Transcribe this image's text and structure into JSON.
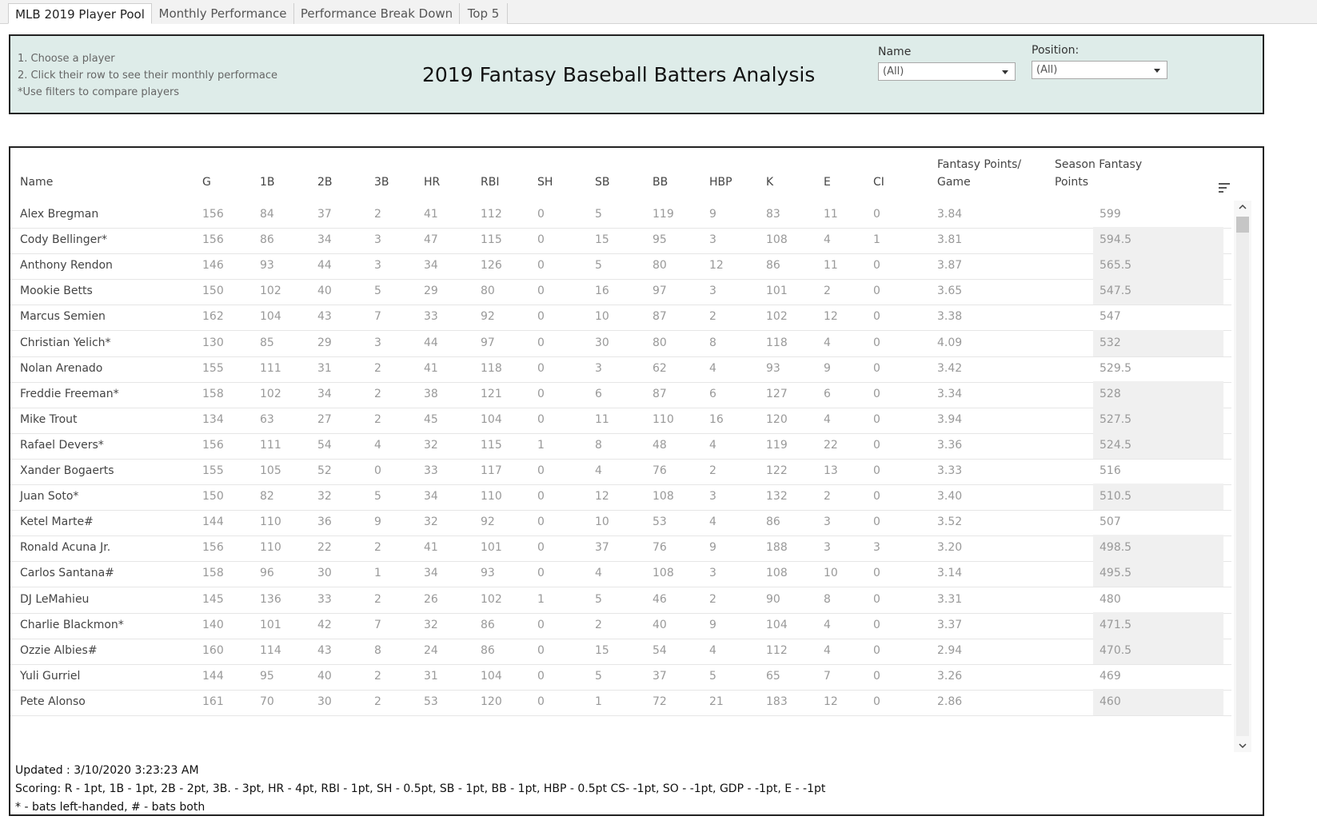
{
  "tabs": [
    {
      "label": "MLB 2019 Player Pool",
      "active": true
    },
    {
      "label": "Monthly Performance",
      "active": false
    },
    {
      "label": "Performance Break Down",
      "active": false
    },
    {
      "label": "Top 5",
      "active": false
    }
  ],
  "header": {
    "instructions": [
      "1. Choose a player",
      "2. Click their row to see their monthly performace",
      "*Use filters to compare players"
    ],
    "title": "2019 Fantasy Baseball Batters Analysis",
    "filters": {
      "name": {
        "label": "Name",
        "value": "(All)"
      },
      "position": {
        "label": "Position:",
        "value": "(All)"
      }
    }
  },
  "table": {
    "columns": [
      "Name",
      "G",
      "1B",
      "2B",
      "3B",
      "HR",
      "RBI",
      "SH",
      "SB",
      "BB",
      "HBP",
      "K",
      "E",
      "CI",
      "Fantasy Points/",
      "Game",
      "Season Fantasy",
      "Points"
    ],
    "rows": [
      [
        "Alex Bregman",
        "156",
        "84",
        "37",
        "2",
        "41",
        "112",
        "0",
        "5",
        "119",
        "9",
        "83",
        "11",
        "0",
        "3.84",
        "599"
      ],
      [
        "Cody Bellinger*",
        "156",
        "86",
        "34",
        "3",
        "47",
        "115",
        "0",
        "15",
        "95",
        "3",
        "108",
        "4",
        "1",
        "3.81",
        "594.5"
      ],
      [
        "Anthony Rendon",
        "146",
        "93",
        "44",
        "3",
        "34",
        "126",
        "0",
        "5",
        "80",
        "12",
        "86",
        "11",
        "0",
        "3.87",
        "565.5"
      ],
      [
        "Mookie Betts",
        "150",
        "102",
        "40",
        "5",
        "29",
        "80",
        "0",
        "16",
        "97",
        "3",
        "101",
        "2",
        "0",
        "3.65",
        "547.5"
      ],
      [
        "Marcus Semien",
        "162",
        "104",
        "43",
        "7",
        "33",
        "92",
        "0",
        "10",
        "87",
        "2",
        "102",
        "12",
        "0",
        "3.38",
        "547"
      ],
      [
        "Christian Yelich*",
        "130",
        "85",
        "29",
        "3",
        "44",
        "97",
        "0",
        "30",
        "80",
        "8",
        "118",
        "4",
        "0",
        "4.09",
        "532"
      ],
      [
        "Nolan Arenado",
        "155",
        "111",
        "31",
        "2",
        "41",
        "118",
        "0",
        "3",
        "62",
        "4",
        "93",
        "9",
        "0",
        "3.42",
        "529.5"
      ],
      [
        "Freddie Freeman*",
        "158",
        "102",
        "34",
        "2",
        "38",
        "121",
        "0",
        "6",
        "87",
        "6",
        "127",
        "6",
        "0",
        "3.34",
        "528"
      ],
      [
        "Mike Trout",
        "134",
        "63",
        "27",
        "2",
        "45",
        "104",
        "0",
        "11",
        "110",
        "16",
        "120",
        "4",
        "0",
        "3.94",
        "527.5"
      ],
      [
        "Rafael Devers*",
        "156",
        "111",
        "54",
        "4",
        "32",
        "115",
        "1",
        "8",
        "48",
        "4",
        "119",
        "22",
        "0",
        "3.36",
        "524.5"
      ],
      [
        "Xander Bogaerts",
        "155",
        "105",
        "52",
        "0",
        "33",
        "117",
        "0",
        "4",
        "76",
        "2",
        "122",
        "13",
        "0",
        "3.33",
        "516"
      ],
      [
        "Juan Soto*",
        "150",
        "82",
        "32",
        "5",
        "34",
        "110",
        "0",
        "12",
        "108",
        "3",
        "132",
        "2",
        "0",
        "3.40",
        "510.5"
      ],
      [
        "Ketel Marte#",
        "144",
        "110",
        "36",
        "9",
        "32",
        "92",
        "0",
        "10",
        "53",
        "4",
        "86",
        "3",
        "0",
        "3.52",
        "507"
      ],
      [
        "Ronald Acuna Jr.",
        "156",
        "110",
        "22",
        "2",
        "41",
        "101",
        "0",
        "37",
        "76",
        "9",
        "188",
        "3",
        "3",
        "3.20",
        "498.5"
      ],
      [
        "Carlos Santana#",
        "158",
        "96",
        "30",
        "1",
        "34",
        "93",
        "0",
        "4",
        "108",
        "3",
        "108",
        "10",
        "0",
        "3.14",
        "495.5"
      ],
      [
        "DJ LeMahieu",
        "145",
        "136",
        "33",
        "2",
        "26",
        "102",
        "1",
        "5",
        "46",
        "2",
        "90",
        "8",
        "0",
        "3.31",
        "480"
      ],
      [
        "Charlie Blackmon*",
        "140",
        "101",
        "42",
        "7",
        "32",
        "86",
        "0",
        "2",
        "40",
        "9",
        "104",
        "4",
        "0",
        "3.37",
        "471.5"
      ],
      [
        "Ozzie Albies#",
        "160",
        "114",
        "43",
        "8",
        "24",
        "86",
        "0",
        "15",
        "54",
        "4",
        "112",
        "4",
        "0",
        "2.94",
        "470.5"
      ],
      [
        "Yuli Gurriel",
        "144",
        "95",
        "40",
        "2",
        "31",
        "104",
        "0",
        "5",
        "37",
        "5",
        "65",
        "7",
        "0",
        "3.26",
        "469"
      ],
      [
        "Pete Alonso",
        "161",
        "70",
        "30",
        "2",
        "53",
        "120",
        "0",
        "1",
        "72",
        "21",
        "183",
        "12",
        "0",
        "2.86",
        "460"
      ]
    ]
  },
  "footer": {
    "updated": "Updated : 3/10/2020 3:23:23 AM",
    "scoring": "Scoring: R - 1pt, 1B - 1pt, 2B - 2pt, 3B. - 3pt, HR - 4pt, RBI - 1pt, SH - 0.5pt, SB - 1pt, BB - 1pt, HBP - 0.5pt CS- -1pt,  SO - -1pt, GDP - -1pt, E - -1pt",
    "legend": "* - bats left-handed, # - bats both"
  },
  "icons": [
    "sort-icon",
    "dropdown-caret-icon",
    "scroll-up-icon",
    "scroll-down-icon"
  ]
}
